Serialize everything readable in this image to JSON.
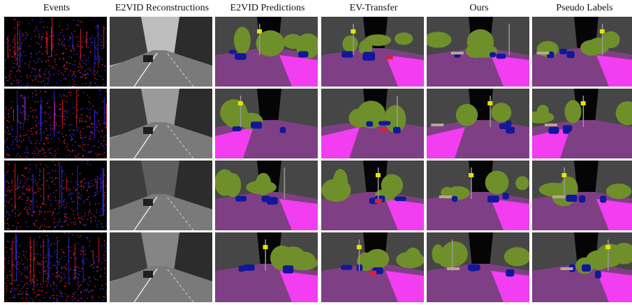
{
  "columns": [
    {
      "title": "Events",
      "kind": "events"
    },
    {
      "title": "E2VID Reconstructions",
      "kind": "recon"
    },
    {
      "title": "E2VID Predictions",
      "kind": "seg"
    },
    {
      "title": "EV-Transfer",
      "kind": "seg"
    },
    {
      "title": "Ours",
      "kind": "seg"
    },
    {
      "title": "Pseudo Labels",
      "kind": "seg"
    }
  ],
  "colors": {
    "road": "#7e3f85",
    "sidewalk": "#f23df0",
    "vegetation": "#6f8f2a",
    "building": "#464646",
    "sky": "#050505",
    "car": "#10179a",
    "sign": "#e6e200",
    "person": "#d8203c",
    "pole": "#9a9a9a",
    "terrain": "#b7a78f",
    "event_pos": "#ff1e28",
    "event_neg": "#3a2cff"
  }
}
